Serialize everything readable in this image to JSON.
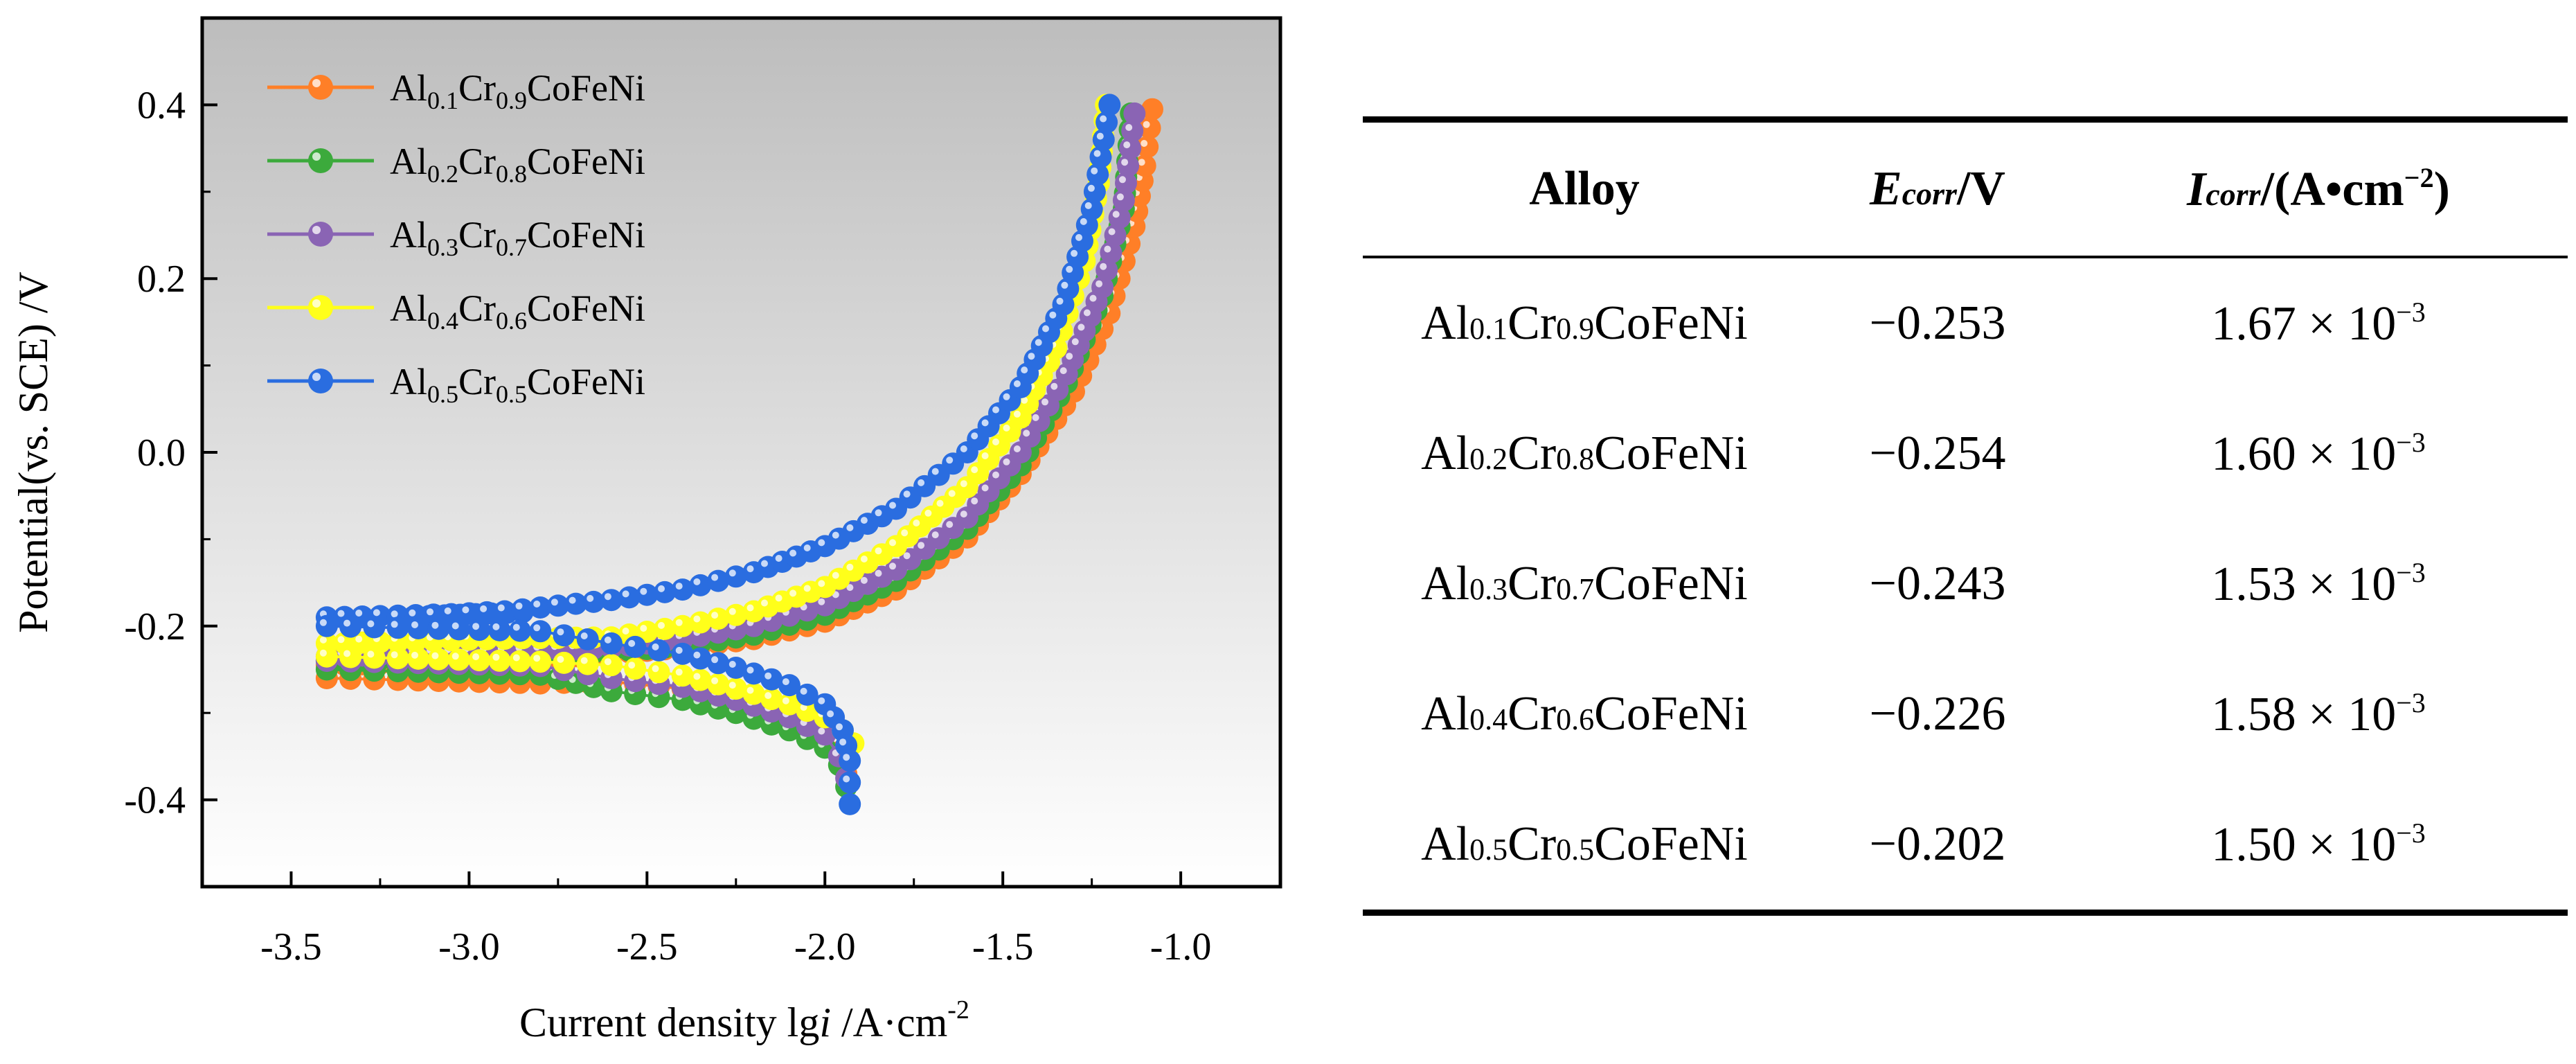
{
  "chart_data": {
    "type": "line",
    "title": "",
    "xlabel": {
      "main": "Current density lg",
      "var": "i",
      "unit": " /A·cm",
      "exp": "-2"
    },
    "ylabel": "Potential(vs. SCE) /V",
    "xlim": [
      -3.75,
      -0.72
    ],
    "ylim": [
      -0.5,
      0.5
    ],
    "x_ticks": [
      -3.5,
      -3.0,
      -2.5,
      -2.0,
      -1.5,
      -1.0
    ],
    "x_tick_labels": [
      "-3.5",
      "-3.0",
      "-2.5",
      "-2.0",
      "-1.5",
      "-1.0"
    ],
    "y_ticks": [
      -0.4,
      -0.2,
      0.0,
      0.2,
      0.4
    ],
    "y_tick_labels": [
      "-0.4",
      "-0.2",
      "0.0",
      "0.2",
      "0.4"
    ],
    "legend_position": "top-left",
    "series": [
      {
        "name": "Al0.1Cr0.9CoFeNi",
        "label": {
          "a": "Al",
          "s1": "0.1",
          "b": "Cr",
          "s2": "0.9",
          "c": "CoFeNi"
        },
        "color": "#ff7f27",
        "ecorr": -0.253,
        "anodic_start": -0.245,
        "cathodic_start": -0.26,
        "anodic": [
          [
            -2.6,
            -0.232
          ],
          [
            -2.4,
            -0.225
          ],
          [
            -2.2,
            -0.215
          ],
          [
            -2.0,
            -0.195
          ],
          [
            -1.8,
            -0.158
          ],
          [
            -1.6,
            -0.098
          ],
          [
            -1.45,
            -0.025
          ],
          [
            -1.3,
            0.07
          ],
          [
            -1.2,
            0.16
          ],
          [
            -1.13,
            0.26
          ],
          [
            -1.1,
            0.33
          ],
          [
            -1.08,
            0.395
          ]
        ],
        "cathodic": [
          [
            -2.6,
            -0.264
          ],
          [
            -2.4,
            -0.272
          ],
          [
            -2.25,
            -0.285
          ],
          [
            -2.1,
            -0.305
          ],
          [
            -2.0,
            -0.325
          ],
          [
            -1.96,
            -0.345
          ],
          [
            -1.94,
            -0.37
          ]
        ]
      },
      {
        "name": "Al0.2Cr0.8CoFeNi",
        "label": {
          "a": "Al",
          "s1": "0.2",
          "b": "Cr",
          "s2": "0.8",
          "c": "CoFeNi"
        },
        "color": "#3caa3c",
        "ecorr": -0.254,
        "anodic_start": -0.24,
        "cathodic_start": -0.25,
        "anodic": [
          [
            -2.6,
            -0.23
          ],
          [
            -2.4,
            -0.223
          ],
          [
            -2.2,
            -0.21
          ],
          [
            -2.0,
            -0.187
          ],
          [
            -1.8,
            -0.148
          ],
          [
            -1.6,
            -0.088
          ],
          [
            -1.45,
            -0.015
          ],
          [
            -1.32,
            0.08
          ],
          [
            -1.22,
            0.18
          ],
          [
            -1.16,
            0.28
          ],
          [
            -1.14,
            0.39
          ]
        ],
        "cathodic": [
          [
            -2.6,
            -0.275
          ],
          [
            -2.4,
            -0.285
          ],
          [
            -2.25,
            -0.3
          ],
          [
            -2.1,
            -0.32
          ],
          [
            -2.0,
            -0.34
          ],
          [
            -1.96,
            -0.36
          ],
          [
            -1.94,
            -0.385
          ]
        ]
      },
      {
        "name": "Al0.3Cr0.7CoFeNi",
        "label": {
          "a": "Al",
          "s1": "0.3",
          "b": "Cr",
          "s2": "0.7",
          "c": "CoFeNi"
        },
        "color": "#8a64b4",
        "ecorr": -0.243,
        "anodic_start": -0.235,
        "cathodic_start": -0.24,
        "anodic": [
          [
            -2.6,
            -0.225
          ],
          [
            -2.4,
            -0.215
          ],
          [
            -2.2,
            -0.2
          ],
          [
            -2.0,
            -0.176
          ],
          [
            -1.8,
            -0.135
          ],
          [
            -1.6,
            -0.075
          ],
          [
            -1.45,
            0.0
          ],
          [
            -1.32,
            0.09
          ],
          [
            -1.22,
            0.19
          ],
          [
            -1.16,
            0.29
          ],
          [
            -1.13,
            0.39
          ]
        ],
        "cathodic": [
          [
            -2.6,
            -0.26
          ],
          [
            -2.4,
            -0.27
          ],
          [
            -2.25,
            -0.285
          ],
          [
            -2.1,
            -0.305
          ],
          [
            -2.0,
            -0.325
          ],
          [
            -1.96,
            -0.35
          ],
          [
            -1.94,
            -0.375
          ]
        ]
      },
      {
        "name": "Al0.4Cr0.6CoFeNi",
        "label": {
          "a": "Al",
          "s1": "0.4",
          "b": "Cr",
          "s2": "0.6",
          "c": "CoFeNi"
        },
        "color": "#ffff1a",
        "ecorr": -0.226,
        "anodic_start": -0.22,
        "cathodic_start": -0.235,
        "anodic": [
          [
            -2.6,
            -0.213
          ],
          [
            -2.4,
            -0.2
          ],
          [
            -2.2,
            -0.183
          ],
          [
            -2.0,
            -0.155
          ],
          [
            -1.8,
            -0.108
          ],
          [
            -1.6,
            -0.04
          ],
          [
            -1.45,
            0.04
          ],
          [
            -1.35,
            0.12
          ],
          [
            -1.27,
            0.22
          ],
          [
            -1.23,
            0.31
          ],
          [
            -1.21,
            0.4
          ]
        ],
        "cathodic": [
          [
            -2.6,
            -0.245
          ],
          [
            -2.4,
            -0.257
          ],
          [
            -2.25,
            -0.272
          ],
          [
            -2.1,
            -0.29
          ],
          [
            -2.0,
            -0.305
          ],
          [
            -1.95,
            -0.32
          ],
          [
            -1.92,
            -0.335
          ]
        ]
      },
      {
        "name": "Al0.5Cr0.5CoFeNi",
        "label": {
          "a": "Al",
          "s1": "0.5",
          "b": "Cr",
          "s2": "0.5",
          "c": "CoFeNi"
        },
        "color": "#2a6de0",
        "ecorr": -0.202,
        "anodic_start": -0.19,
        "cathodic_start": -0.2,
        "anodic": [
          [
            -3.2,
            -0.19
          ],
          [
            -2.9,
            -0.183
          ],
          [
            -2.6,
            -0.17
          ],
          [
            -2.4,
            -0.158
          ],
          [
            -2.2,
            -0.138
          ],
          [
            -2.0,
            -0.108
          ],
          [
            -1.8,
            -0.065
          ],
          [
            -1.6,
            0.0
          ],
          [
            -1.45,
            0.075
          ],
          [
            -1.33,
            0.17
          ],
          [
            -1.25,
            0.28
          ],
          [
            -1.2,
            0.4
          ]
        ],
        "cathodic": [
          [
            -2.6,
            -0.22
          ],
          [
            -2.4,
            -0.232
          ],
          [
            -2.25,
            -0.248
          ],
          [
            -2.1,
            -0.268
          ],
          [
            -2.0,
            -0.29
          ],
          [
            -1.95,
            -0.32
          ],
          [
            -1.93,
            -0.355
          ],
          [
            -1.93,
            -0.405
          ]
        ]
      }
    ]
  },
  "table": {
    "headers": {
      "alloy": "Alloy",
      "ecorr": {
        "sym": "E",
        "sub": "corr",
        "unit": "/V"
      },
      "icorr": {
        "sym": "I",
        "sub": "corr",
        "unit": "/(A•cm",
        "exp": "−2",
        "close": ")"
      }
    },
    "rows": [
      {
        "a": "Al",
        "s1": "0.1",
        "b": "Cr",
        "s2": "0.9",
        "c": "CoFeNi",
        "ecorr": "−0.253",
        "icorr": "1.67 × 10",
        "exp": "−3"
      },
      {
        "a": "Al",
        "s1": "0.2",
        "b": "Cr",
        "s2": "0.8",
        "c": "CoFeNi",
        "ecorr": "−0.254",
        "icorr": "1.60 × 10",
        "exp": "−3"
      },
      {
        "a": "Al",
        "s1": "0.3",
        "b": "Cr",
        "s2": "0.7",
        "c": "CoFeNi",
        "ecorr": "−0.243",
        "icorr": "1.53 × 10",
        "exp": "−3"
      },
      {
        "a": "Al",
        "s1": "0.4",
        "b": "Cr",
        "s2": "0.6",
        "c": "CoFeNi",
        "ecorr": "−0.226",
        "icorr": "1.58 × 10",
        "exp": "−3"
      },
      {
        "a": "Al",
        "s1": "0.5",
        "b": "Cr",
        "s2": "0.5",
        "c": "CoFeNi",
        "ecorr": "−0.202",
        "icorr": "1.50 × 10",
        "exp": "−3"
      }
    ]
  }
}
